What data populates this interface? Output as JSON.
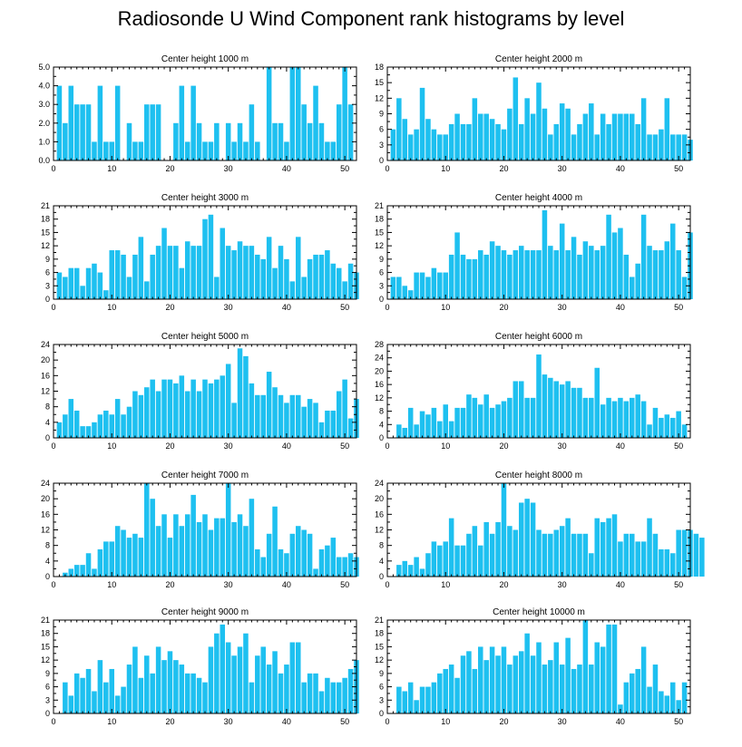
{
  "title": "Radiosonde U Wind Component rank histograms by level",
  "bar_color": "#1ec0f0",
  "chart_data": [
    {
      "type": "bar",
      "title": "Center height 1000 m",
      "xlim": [
        0,
        52
      ],
      "ylim": [
        0,
        5
      ],
      "yticks": [
        0,
        1,
        2,
        3,
        4,
        5
      ],
      "ytick_labels": [
        "0.0",
        "1.0",
        "2.0",
        "3.0",
        "4.0",
        "5.0"
      ],
      "xticks": [
        0,
        10,
        20,
        30,
        40,
        50
      ],
      "values": [
        4,
        2,
        4,
        3,
        3,
        3,
        1,
        4,
        1,
        1,
        4,
        0,
        2,
        1,
        1,
        3,
        3,
        3,
        0,
        0,
        2,
        4,
        1,
        4,
        2,
        1,
        1,
        2,
        0,
        2,
        1,
        2,
        1,
        3,
        1,
        0,
        5,
        2,
        2,
        1,
        5,
        5,
        3,
        2,
        4,
        2,
        1,
        1,
        3,
        5,
        3
      ]
    },
    {
      "type": "bar",
      "title": "Center height 2000 m",
      "xlim": [
        0,
        52
      ],
      "ylim": [
        0,
        18
      ],
      "yticks": [
        0,
        3,
        6,
        9,
        12,
        15,
        18
      ],
      "ytick_labels": [
        "0",
        "3",
        "6",
        "9",
        "12",
        "15",
        "18"
      ],
      "xticks": [
        0,
        10,
        20,
        30,
        40,
        50
      ],
      "values": [
        6,
        12,
        8,
        5,
        6,
        14,
        8,
        6,
        5,
        5,
        7,
        9,
        7,
        7,
        12,
        9,
        9,
        8,
        7,
        6,
        10,
        16,
        7,
        12,
        9,
        15,
        10,
        5,
        7,
        11,
        10,
        5,
        7,
        9,
        11,
        5,
        9,
        7,
        9,
        9,
        9,
        9,
        7,
        12,
        5,
        5,
        6,
        12,
        5,
        5,
        5,
        4
      ]
    },
    {
      "type": "bar",
      "title": "Center height 3000 m",
      "xlim": [
        0,
        52
      ],
      "ylim": [
        0,
        21
      ],
      "yticks": [
        0,
        3,
        6,
        9,
        12,
        15,
        18,
        21
      ],
      "ytick_labels": [
        "0",
        "3",
        "6",
        "9",
        "12",
        "15",
        "18",
        "21"
      ],
      "xticks": [
        0,
        10,
        20,
        30,
        40,
        50
      ],
      "values": [
        6,
        5,
        7,
        7,
        3,
        7,
        8,
        6,
        2,
        11,
        11,
        10,
        5,
        10,
        14,
        4,
        10,
        12,
        16,
        12,
        12,
        7,
        13,
        12,
        12,
        18,
        19,
        5,
        16,
        12,
        11,
        13,
        12,
        12,
        10,
        9,
        14,
        7,
        12,
        9,
        4,
        14,
        5,
        9,
        10,
        10,
        11,
        8,
        7,
        4,
        8,
        6
      ]
    },
    {
      "type": "bar",
      "title": "Center height 4000 m",
      "xlim": [
        0,
        52
      ],
      "ylim": [
        0,
        21
      ],
      "yticks": [
        0,
        3,
        6,
        9,
        12,
        15,
        18,
        21
      ],
      "ytick_labels": [
        "0",
        "3",
        "6",
        "9",
        "12",
        "15",
        "18",
        "21"
      ],
      "xticks": [
        0,
        10,
        20,
        30,
        40,
        50
      ],
      "values": [
        5,
        5,
        3,
        2,
        6,
        6,
        5,
        7,
        6,
        6,
        10,
        15,
        10,
        9,
        9,
        11,
        10,
        13,
        12,
        11,
        10,
        11,
        12,
        11,
        11,
        11,
        20,
        12,
        11,
        17,
        11,
        14,
        10,
        13,
        12,
        11,
        12,
        19,
        15,
        16,
        10,
        5,
        8,
        19,
        12,
        11,
        11,
        13,
        17,
        11,
        5,
        15
      ]
    },
    {
      "type": "bar",
      "title": "Center height 5000 m",
      "xlim": [
        0,
        52
      ],
      "ylim": [
        0,
        24
      ],
      "yticks": [
        0,
        4,
        8,
        12,
        16,
        20,
        24
      ],
      "ytick_labels": [
        "0",
        "4",
        "8",
        "12",
        "16",
        "20",
        "24"
      ],
      "xticks": [
        0,
        10,
        20,
        30,
        40,
        50
      ],
      "values": [
        4,
        6,
        10,
        7,
        3,
        3,
        4,
        6,
        7,
        6,
        10,
        6,
        8,
        12,
        11,
        13,
        15,
        12,
        15,
        15,
        14,
        16,
        12,
        15,
        12,
        15,
        14,
        15,
        16,
        19,
        9,
        23,
        21,
        14,
        11,
        11,
        17,
        13,
        11,
        9,
        11,
        11,
        8,
        10,
        9,
        4,
        7,
        7,
        12,
        15,
        5,
        10
      ]
    },
    {
      "type": "bar",
      "title": "Center height 6000 m",
      "xlim": [
        0,
        52
      ],
      "ylim": [
        0,
        28
      ],
      "yticks": [
        0,
        4,
        8,
        12,
        16,
        20,
        24,
        28
      ],
      "ytick_labels": [
        "0",
        "4",
        "8",
        "12",
        "16",
        "20",
        "24",
        "28"
      ],
      "xticks": [
        0,
        10,
        20,
        30,
        40,
        50
      ],
      "values": [
        0,
        4,
        3,
        9,
        4,
        8,
        7,
        9,
        5,
        10,
        5,
        9,
        9,
        13,
        12,
        10,
        13,
        9,
        10,
        11,
        12,
        17,
        17,
        12,
        12,
        25,
        19,
        18,
        17,
        16,
        17,
        15,
        15,
        12,
        12,
        21,
        10,
        12,
        11,
        12,
        11,
        12,
        13,
        11,
        4,
        9,
        6,
        7,
        6,
        8,
        4
      ]
    },
    {
      "type": "bar",
      "title": "Center height 7000 m",
      "xlim": [
        0,
        52
      ],
      "ylim": [
        0,
        24
      ],
      "yticks": [
        0,
        4,
        8,
        12,
        16,
        20,
        24
      ],
      "ytick_labels": [
        "0",
        "4",
        "8",
        "12",
        "16",
        "20",
        "24"
      ],
      "xticks": [
        0,
        10,
        20,
        30,
        40,
        50
      ],
      "values": [
        0,
        1,
        2,
        3,
        3,
        6,
        2,
        7,
        9,
        9,
        13,
        12,
        10,
        11,
        10,
        24,
        20,
        13,
        16,
        10,
        16,
        13,
        16,
        21,
        14,
        16,
        12,
        15,
        15,
        24,
        14,
        16,
        13,
        20,
        7,
        5,
        11,
        18,
        7,
        6,
        11,
        13,
        12,
        11,
        2,
        7,
        8,
        10,
        5,
        5,
        6,
        5
      ]
    },
    {
      "type": "bar",
      "title": "Center height 8000 m",
      "xlim": [
        0,
        52
      ],
      "ylim": [
        0,
        24
      ],
      "yticks": [
        0,
        4,
        8,
        12,
        16,
        20,
        24
      ],
      "ytick_labels": [
        "0",
        "4",
        "8",
        "12",
        "16",
        "20",
        "24"
      ],
      "xticks": [
        0,
        10,
        20,
        30,
        40,
        50
      ],
      "values": [
        0,
        3,
        4,
        3,
        5,
        2,
        6,
        9,
        8,
        9,
        15,
        8,
        8,
        11,
        13,
        8,
        14,
        11,
        14,
        24,
        13,
        12,
        19,
        20,
        19,
        12,
        11,
        11,
        12,
        13,
        15,
        11,
        11,
        11,
        6,
        15,
        14,
        15,
        16,
        9,
        11,
        11,
        9,
        9,
        15,
        11,
        7,
        7,
        6,
        12,
        12,
        12,
        11,
        10
      ]
    },
    {
      "type": "bar",
      "title": "Center height 9000 m",
      "xlim": [
        0,
        52
      ],
      "ylim": [
        0,
        21
      ],
      "yticks": [
        0,
        3,
        6,
        9,
        12,
        15,
        18,
        21
      ],
      "ytick_labels": [
        "0",
        "3",
        "6",
        "9",
        "12",
        "15",
        "18",
        "21"
      ],
      "xticks": [
        0,
        10,
        20,
        30,
        40,
        50
      ],
      "values": [
        0,
        7,
        4,
        9,
        8,
        10,
        5,
        12,
        7,
        10,
        4,
        6,
        11,
        15,
        8,
        13,
        9,
        15,
        12,
        14,
        12,
        11,
        9,
        9,
        8,
        7,
        15,
        18,
        20,
        16,
        13,
        15,
        18,
        7,
        13,
        15,
        11,
        14,
        9,
        11,
        16,
        16,
        7,
        9,
        9,
        5,
        8,
        7,
        7,
        8,
        10,
        12
      ]
    },
    {
      "type": "bar",
      "title": "Center height 10000 m",
      "xlim": [
        0,
        52
      ],
      "ylim": [
        0,
        21
      ],
      "yticks": [
        0,
        3,
        6,
        9,
        12,
        15,
        18,
        21
      ],
      "ytick_labels": [
        "0",
        "3",
        "6",
        "9",
        "12",
        "15",
        "18",
        "21"
      ],
      "xticks": [
        0,
        10,
        20,
        30,
        40,
        50
      ],
      "values": [
        0,
        6,
        5,
        7,
        3,
        6,
        6,
        7,
        9,
        10,
        11,
        8,
        13,
        14,
        10,
        15,
        12,
        15,
        13,
        15,
        11,
        13,
        14,
        18,
        13,
        16,
        11,
        12,
        16,
        11,
        17,
        10,
        11,
        21,
        11,
        16,
        15,
        20,
        20,
        2,
        7,
        9,
        10,
        15,
        6,
        11,
        5,
        4,
        7,
        3,
        7
      ]
    }
  ]
}
